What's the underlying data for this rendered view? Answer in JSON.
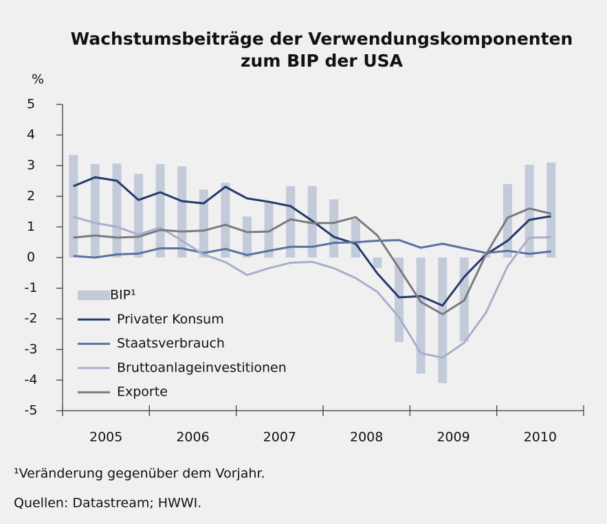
{
  "chart_data": {
    "type": "line",
    "title": [
      "Wachstumsbeiträge der Verwendungskomponenten",
      "zum BIP der USA"
    ],
    "y_unit": "%",
    "categories": [
      null,
      null,
      null,
      null,
      null,
      null,
      null,
      null,
      null,
      null,
      null,
      null,
      null,
      null,
      null,
      null,
      null,
      null,
      null,
      null,
      null,
      null,
      null
    ],
    "x_groups": [
      "2005",
      "2006",
      "2007",
      "2008",
      "2009",
      "2010"
    ],
    "ylim": [
      -5,
      5
    ],
    "yticks": [
      -5,
      -4,
      -3,
      -2,
      -1,
      0,
      1,
      2,
      3,
      4,
      5
    ],
    "series": [
      {
        "name": "BIP¹",
        "type": "bar",
        "color": "#c3cad9",
        "values": [
          3.35,
          3.05,
          3.07,
          2.73,
          3.05,
          2.98,
          2.22,
          2.44,
          1.34,
          1.8,
          2.33,
          2.33,
          1.9,
          1.25,
          -0.34,
          -2.76,
          -3.79,
          -4.1,
          -2.74,
          0.1,
          2.4,
          3.03,
          3.1
        ]
      },
      {
        "name": "Privater Konsum",
        "color": "#213a6b",
        "values": [
          2.33,
          2.62,
          2.51,
          1.88,
          2.13,
          1.84,
          1.77,
          2.31,
          1.93,
          1.82,
          1.68,
          1.2,
          0.67,
          0.45,
          -0.52,
          -1.3,
          -1.26,
          -1.57,
          -0.63,
          0.1,
          0.55,
          1.23,
          1.35
        ]
      },
      {
        "name": "Staatsverbrauch",
        "color": "#5b70a0",
        "values": [
          0.05,
          0,
          0.1,
          0.13,
          0.3,
          0.3,
          0.15,
          0.28,
          0.08,
          0.22,
          0.35,
          0.35,
          0.48,
          0.5,
          0.55,
          0.57,
          0.32,
          0.45,
          0.3,
          0.15,
          0.22,
          0.12,
          0.2
        ]
      },
      {
        "name": "Bruttoanlageinvestitionen",
        "color": "#a6b0cc",
        "values": [
          1.33,
          1.13,
          1.0,
          0.75,
          0.98,
          0.55,
          0.1,
          -0.15,
          -0.57,
          -0.35,
          -0.17,
          -0.14,
          -0.35,
          -0.67,
          -1.12,
          -1.95,
          -3.12,
          -3.27,
          -2.78,
          -1.8,
          -0.28,
          0.65,
          0.66
        ]
      },
      {
        "name": "Exporte",
        "color": "#7a7a7a",
        "values": [
          0.65,
          0.72,
          0.65,
          0.68,
          0.9,
          0.85,
          0.88,
          1.07,
          0.83,
          0.85,
          1.25,
          1.12,
          1.13,
          1.32,
          0.72,
          -0.35,
          -1.45,
          -1.85,
          -1.4,
          0.1,
          1.3,
          1.6,
          1.43
        ]
      }
    ],
    "footnote": "¹Veränderung gegenüber dem Vorjahr.",
    "source": "Quellen: Datastream; HWWI."
  }
}
